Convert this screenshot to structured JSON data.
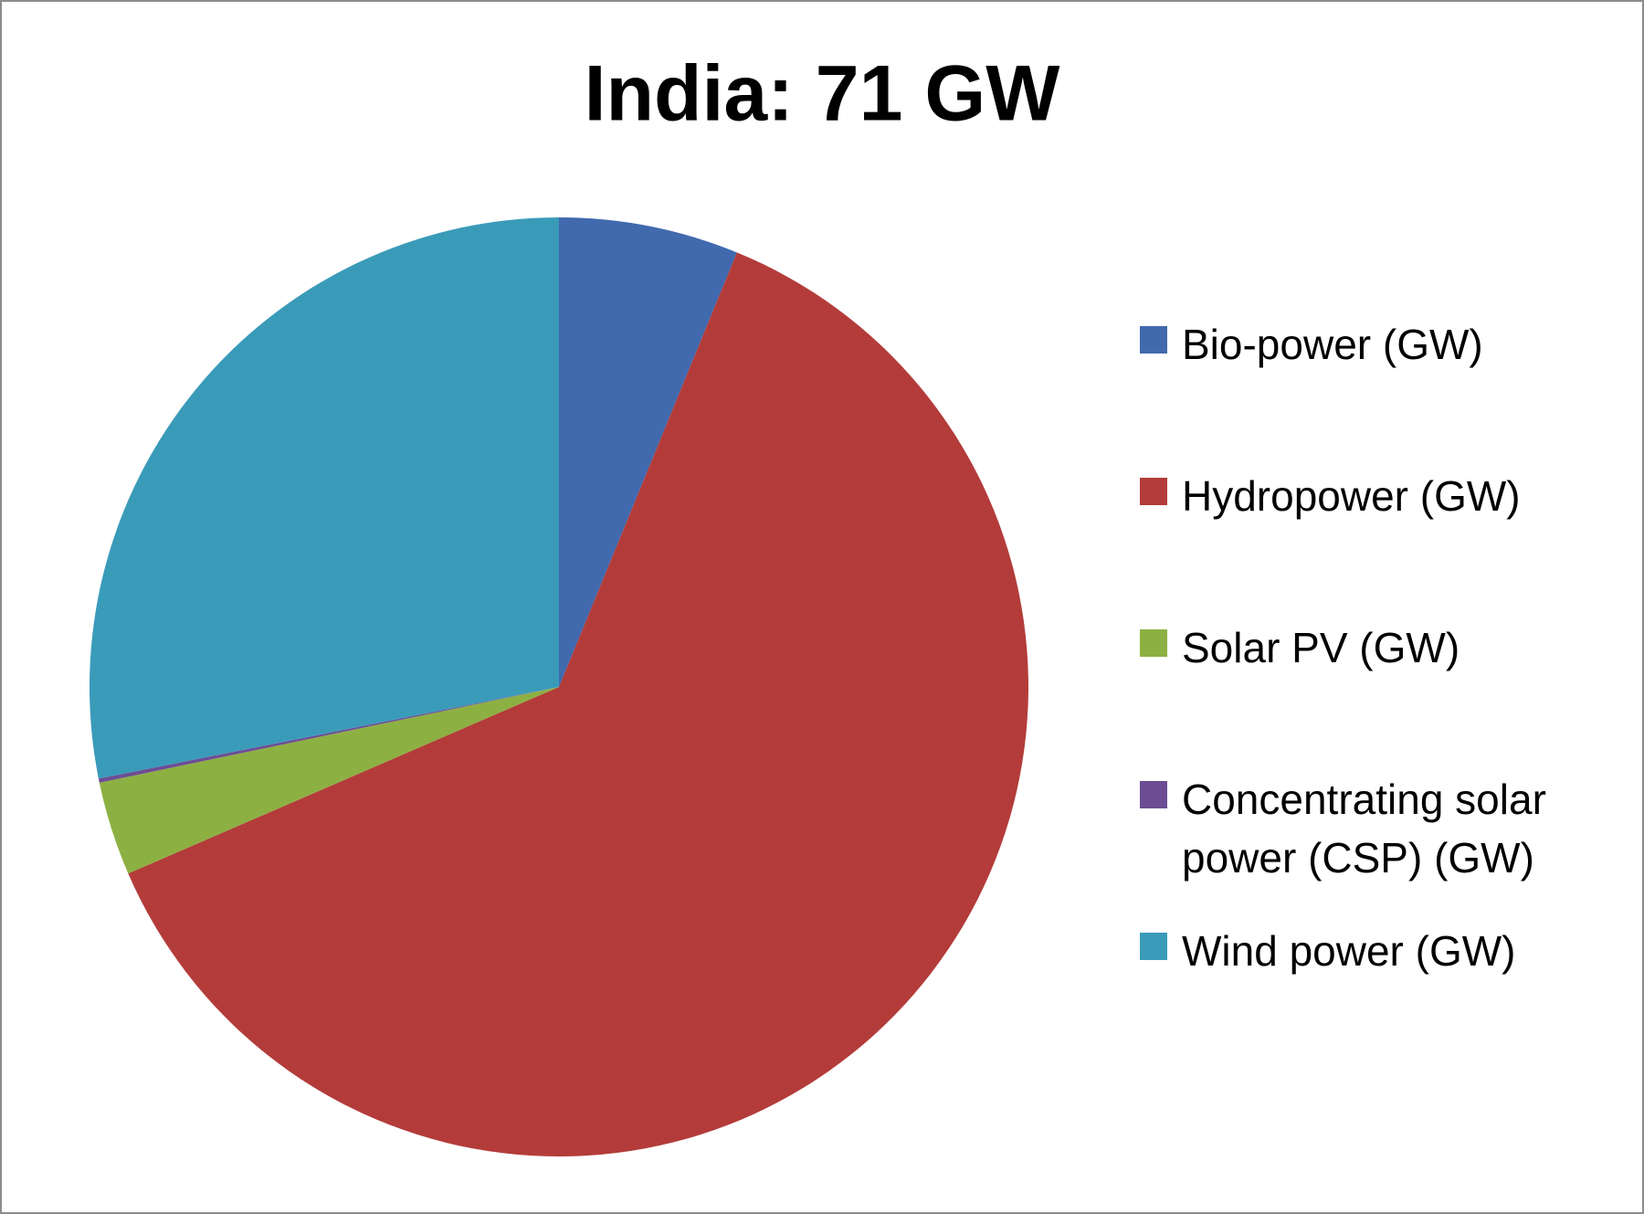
{
  "chart_data": {
    "type": "pie",
    "title": "India: 71 GW",
    "categories": [
      "Bio-power (GW)",
      "Hydropower (GW)",
      "Solar PV (GW)",
      "Concentrating solar power (CSP) (GW)",
      "Wind power (GW)"
    ],
    "values": [
      4.4,
      44.3,
      2.3,
      0.1,
      20.0
    ],
    "colors": [
      "#4169ae",
      "#b33c3a",
      "#8db043",
      "#6c4d94",
      "#3a9bb9"
    ],
    "legend": "right"
  }
}
